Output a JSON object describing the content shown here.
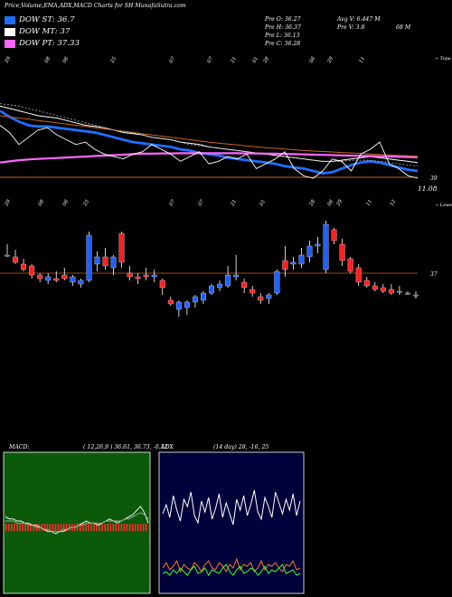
{
  "header": {
    "title": "Price,Volume,EMA,ADX,MACD Charts for SH MunafaSutra.com"
  },
  "legend": [
    {
      "label": "DOW ST: 36.7",
      "color": "#1f6fff"
    },
    {
      "label": "DOW MT: 37",
      "color": "#ffffff"
    },
    {
      "label": "DOW PT: 37.33",
      "color": "#ff66ff"
    }
  ],
  "info": {
    "prev_o": "Pre   O: 36.27",
    "prev_h": "Pre   H: 36.37",
    "prev_l": "Pre   L: 36.13",
    "prev_c": "Pre   C: 36.28",
    "avg_v": "Avg V: 6.447 M",
    "prev_v": "Pre   V: 3.8",
    "vol_unit": "68  M"
  },
  "colors": {
    "ema_fast": "#1f6fff",
    "ema_mid": "#ffffff",
    "ema_pt": "#ff66ff",
    "ema_long": "#c8641e",
    "bull": "#2060ff",
    "bear": "#ff2020",
    "macd_bg": "#0a5a0a",
    "adx_bg": "#00003a",
    "level_line": "#c8641e"
  },
  "panel_labels": {
    "ema_right": "« Topa",
    "candle_right": "« Lowes"
  },
  "chart_data": [
    {
      "type": "line",
      "panel": "ema",
      "ylim": [
        35.5,
        40.5
      ],
      "x_tick_labels": [
        "29",
        "08",
        "06",
        "25",
        "07",
        "07",
        "21",
        "01",
        "28",
        "06",
        "29",
        "11",
        "12",
        "06",
        "25",
        "02",
        "07"
      ],
      "price_level_label": "39",
      "last_value_label": "11.08",
      "series": [
        {
          "name": "DOW ST: 36.7",
          "color": "#1f6fff",
          "values": [
            38.6,
            38.35,
            38.15,
            38.0,
            37.95,
            37.95,
            37.9,
            37.85,
            37.8,
            37.75,
            37.7,
            37.6,
            37.5,
            37.4,
            37.3,
            37.25,
            37.2,
            37.15,
            37.1,
            37.0,
            36.95,
            36.85,
            36.8,
            36.75,
            36.65,
            36.6,
            36.55,
            36.5,
            36.45,
            36.4,
            36.3,
            36.25,
            36.2,
            36.1,
            36.0,
            36.05,
            36.2,
            36.35,
            36.45,
            36.5,
            36.45,
            36.35,
            36.25,
            36.15,
            36.1
          ]
        },
        {
          "name": "DOW MT: 37",
          "color": "#ffffff",
          "values": [
            38.8,
            38.7,
            38.6,
            38.5,
            38.4,
            38.35,
            38.3,
            38.2,
            38.1,
            38.0,
            37.95,
            37.9,
            37.8,
            37.7,
            37.65,
            37.6,
            37.5,
            37.45,
            37.4,
            37.3,
            37.25,
            37.2,
            37.1,
            37.05,
            37.0,
            36.95,
            36.9,
            36.85,
            36.8,
            36.75,
            36.7,
            36.65,
            36.6,
            36.55,
            36.5,
            36.5,
            36.55,
            36.6,
            36.65,
            36.7,
            36.65,
            36.6,
            36.55,
            36.5,
            36.45
          ]
        },
        {
          "name": "DOW PT: 37.33",
          "color": "#ff66ff",
          "values": [
            36.45,
            36.5,
            36.55,
            36.58,
            36.6,
            36.62,
            36.64,
            36.66,
            36.68,
            36.7,
            36.72,
            36.74,
            36.76,
            36.78,
            36.8,
            36.82,
            36.82,
            36.83,
            36.83,
            36.84,
            36.84,
            36.84,
            36.84,
            36.84,
            36.84,
            36.84,
            36.83,
            36.83,
            36.82,
            36.82,
            36.81,
            36.8,
            36.79,
            36.78,
            36.77,
            36.76,
            36.75,
            36.74,
            36.73,
            36.72,
            36.71,
            36.7,
            36.69,
            36.68,
            36.67
          ]
        },
        {
          "name": "",
          "color": "#c8641e",
          "values": [
            38.4,
            38.35,
            38.3,
            38.25,
            38.2,
            38.15,
            38.1,
            38.05,
            38.0,
            37.95,
            37.9,
            37.85,
            37.8,
            37.75,
            37.7,
            37.65,
            37.6,
            37.55,
            37.5,
            37.45,
            37.4,
            37.35,
            37.3,
            37.26,
            37.22,
            37.18,
            37.14,
            37.1,
            37.07,
            37.04,
            37.01,
            36.98,
            36.95,
            36.93,
            36.91,
            36.89,
            36.87,
            36.85,
            36.83,
            36.81,
            36.79,
            36.77,
            36.75,
            36.73,
            36.71
          ]
        },
        {
          "name": "",
          "color": "#bbbbbb",
          "values": [
            38.9,
            38.85,
            38.8,
            38.7,
            38.6,
            38.5,
            38.4,
            38.3,
            38.2,
            38.1,
            38.0,
            37.9,
            37.8,
            37.75,
            37.7,
            37.6,
            37.5,
            37.45,
            37.4,
            37.3,
            37.2,
            37.15,
            37.1,
            37.05,
            37.0,
            36.95,
            36.9,
            36.85,
            36.8,
            36.75,
            36.7,
            36.65,
            36.6,
            36.55,
            36.5,
            36.5,
            36.5,
            36.55,
            36.55,
            36.55,
            36.5,
            36.45,
            36.4,
            36.35,
            36.3
          ]
        },
        {
          "name": "",
          "color": "#ffffff",
          "values": [
            38.0,
            37.7,
            37.2,
            37.5,
            37.8,
            37.9,
            37.6,
            37.4,
            37.2,
            37.3,
            37.0,
            36.8,
            36.7,
            36.6,
            36.8,
            36.9,
            37.2,
            37.0,
            36.8,
            36.5,
            36.7,
            36.9,
            36.4,
            36.5,
            36.7,
            36.6,
            36.8,
            36.2,
            36.4,
            36.6,
            36.9,
            36.2,
            35.9,
            35.8,
            36.1,
            36.6,
            36.5,
            36.1,
            36.8,
            37.0,
            37.3,
            36.4,
            36.2,
            35.9,
            35.8
          ]
        }
      ]
    },
    {
      "type": "candlestick",
      "panel": "price",
      "ylim": [
        33.5,
        40.5
      ],
      "x_tick_labels": [
        "29",
        "08",
        "06",
        "25",
        "07",
        "07",
        "21",
        "01",
        "28",
        "06",
        "29",
        "11",
        "12",
        "06",
        "25",
        "02",
        "07"
      ],
      "level_line_value": 37.0,
      "level_label": "37",
      "candles": [
        {
          "o": 38.0,
          "h": 38.6,
          "l": 37.9,
          "c": 38.0
        },
        {
          "o": 37.9,
          "h": 38.3,
          "l": 37.5,
          "c": 37.6
        },
        {
          "o": 37.5,
          "h": 37.8,
          "l": 37.1,
          "c": 37.2
        },
        {
          "o": 37.4,
          "h": 37.5,
          "l": 36.7,
          "c": 36.9
        },
        {
          "o": 36.9,
          "h": 37.0,
          "l": 36.5,
          "c": 36.7
        },
        {
          "o": 36.6,
          "h": 37.0,
          "l": 36.4,
          "c": 36.8
        },
        {
          "o": 36.7,
          "h": 37.1,
          "l": 36.5,
          "c": 36.6
        },
        {
          "o": 36.9,
          "h": 37.3,
          "l": 36.6,
          "c": 36.7
        },
        {
          "o": 36.5,
          "h": 36.9,
          "l": 36.3,
          "c": 36.8
        },
        {
          "o": 36.4,
          "h": 36.7,
          "l": 36.2,
          "c": 36.6
        },
        {
          "o": 36.6,
          "h": 39.3,
          "l": 36.5,
          "c": 39.1
        },
        {
          "o": 37.5,
          "h": 38.2,
          "l": 37.1,
          "c": 37.9
        },
        {
          "o": 37.9,
          "h": 38.4,
          "l": 37.2,
          "c": 37.4
        },
        {
          "o": 37.3,
          "h": 38.0,
          "l": 36.9,
          "c": 37.9
        },
        {
          "o": 39.2,
          "h": 39.3,
          "l": 37.3,
          "c": 37.6
        },
        {
          "o": 37.0,
          "h": 37.4,
          "l": 36.6,
          "c": 36.8
        },
        {
          "o": 36.8,
          "h": 37.0,
          "l": 36.4,
          "c": 36.7
        },
        {
          "o": 36.9,
          "h": 37.3,
          "l": 36.6,
          "c": 36.8
        },
        {
          "o": 36.8,
          "h": 37.2,
          "l": 36.5,
          "c": 36.9
        },
        {
          "o": 36.6,
          "h": 36.7,
          "l": 35.8,
          "c": 36.2
        },
        {
          "o": 35.5,
          "h": 35.7,
          "l": 35.2,
          "c": 35.3
        },
        {
          "o": 35.0,
          "h": 35.5,
          "l": 34.6,
          "c": 35.4
        },
        {
          "o": 35.1,
          "h": 35.5,
          "l": 34.7,
          "c": 35.4
        },
        {
          "o": 35.4,
          "h": 35.8,
          "l": 35.1,
          "c": 35.7
        },
        {
          "o": 35.5,
          "h": 36.0,
          "l": 35.3,
          "c": 35.9
        },
        {
          "o": 35.9,
          "h": 36.4,
          "l": 35.8,
          "c": 36.3
        },
        {
          "o": 36.2,
          "h": 36.6,
          "l": 36.0,
          "c": 36.4
        },
        {
          "o": 36.3,
          "h": 37.4,
          "l": 36.2,
          "c": 36.9
        },
        {
          "o": 36.8,
          "h": 38.0,
          "l": 36.6,
          "c": 36.9
        },
        {
          "o": 36.5,
          "h": 36.7,
          "l": 35.9,
          "c": 36.2
        },
        {
          "o": 36.1,
          "h": 36.3,
          "l": 35.7,
          "c": 35.9
        },
        {
          "o": 35.7,
          "h": 35.9,
          "l": 35.3,
          "c": 35.5
        },
        {
          "o": 35.6,
          "h": 35.9,
          "l": 35.3,
          "c": 35.8
        },
        {
          "o": 35.9,
          "h": 37.2,
          "l": 35.8,
          "c": 37.1
        },
        {
          "o": 37.7,
          "h": 38.5,
          "l": 36.8,
          "c": 37.2
        },
        {
          "o": 37.5,
          "h": 37.9,
          "l": 37.2,
          "c": 37.6
        },
        {
          "o": 37.5,
          "h": 38.4,
          "l": 37.3,
          "c": 38.0
        },
        {
          "o": 37.9,
          "h": 38.8,
          "l": 37.6,
          "c": 38.5
        },
        {
          "o": 38.5,
          "h": 39.0,
          "l": 38.1,
          "c": 38.6
        },
        {
          "o": 37.2,
          "h": 39.9,
          "l": 37.0,
          "c": 39.7
        },
        {
          "o": 39.4,
          "h": 39.5,
          "l": 38.6,
          "c": 38.8
        },
        {
          "o": 38.6,
          "h": 38.9,
          "l": 37.4,
          "c": 37.7
        },
        {
          "o": 37.8,
          "h": 37.9,
          "l": 37.0,
          "c": 37.1
        },
        {
          "o": 37.3,
          "h": 37.5,
          "l": 36.3,
          "c": 36.5
        },
        {
          "o": 36.6,
          "h": 36.8,
          "l": 36.2,
          "c": 36.3
        },
        {
          "o": 36.3,
          "h": 36.5,
          "l": 36.0,
          "c": 36.1
        },
        {
          "o": 36.2,
          "h": 36.4,
          "l": 35.9,
          "c": 36.0
        },
        {
          "o": 36.1,
          "h": 36.4,
          "l": 35.8,
          "c": 35.9
        },
        {
          "o": 36.0,
          "h": 36.3,
          "l": 35.8,
          "c": 36.0
        },
        {
          "o": 35.9,
          "h": 36.0,
          "l": 35.8,
          "c": 35.9
        },
        {
          "o": 35.8,
          "h": 36.0,
          "l": 35.6,
          "c": 35.8
        }
      ]
    },
    {
      "type": "line",
      "panel": "macd",
      "title": "MACD:",
      "params_label": "( 12,26,9 ) 36.61,  36.73,  -0.12",
      "series": [
        {
          "name": "",
          "color": "#ffffff",
          "values": [
            0.05,
            0.04,
            0.04,
            0.03,
            0.03,
            0.02,
            0.02,
            0.01,
            0.01,
            0.0,
            -0.01,
            -0.02,
            -0.02,
            -0.03,
            -0.02,
            -0.02,
            -0.01,
            0.0,
            0.0,
            0.01,
            0.02,
            0.03,
            0.02,
            0.02,
            0.01,
            0.02,
            0.03,
            0.04,
            0.03,
            0.02,
            0.03,
            0.04,
            0.05,
            0.06,
            0.08,
            0.1,
            0.07,
            0.02
          ]
        },
        {
          "name": "",
          "color": "#aaaaaa",
          "values": [
            0.03,
            0.03,
            0.03,
            0.02,
            0.02,
            0.02,
            0.01,
            0.01,
            0.0,
            0.0,
            -0.01,
            -0.01,
            -0.02,
            -0.02,
            -0.02,
            -0.01,
            -0.01,
            0.0,
            0.0,
            0.01,
            0.01,
            0.02,
            0.02,
            0.02,
            0.02,
            0.02,
            0.03,
            0.03,
            0.03,
            0.03,
            0.03,
            0.04,
            0.04,
            0.05,
            0.06,
            0.07,
            0.06,
            0.04
          ]
        }
      ],
      "histogram_count": 52
    },
    {
      "type": "line",
      "panel": "adx",
      "title": "ADX",
      "params_label": "(14  day) 28,  -16,  25",
      "series": [
        {
          "name": "",
          "color": "#ffffff",
          "values": [
            40,
            45,
            38,
            50,
            42,
            36,
            48,
            44,
            52,
            39,
            35,
            47,
            41,
            49,
            37,
            43,
            51,
            38,
            46,
            40,
            34,
            48,
            42,
            50,
            39,
            45,
            53,
            41,
            37,
            49,
            44,
            38,
            52,
            46,
            40,
            48,
            42,
            51,
            39,
            47
          ]
        },
        {
          "name": "",
          "color": "#ff7a1a",
          "values": [
            10,
            13,
            9,
            11,
            14,
            8,
            12,
            10,
            9,
            13,
            11,
            8,
            12,
            14,
            10,
            9,
            13,
            11,
            8,
            12,
            10,
            15,
            9,
            12,
            11,
            13,
            8,
            10,
            14,
            9,
            12,
            11,
            13,
            10,
            8,
            12,
            11,
            14,
            9,
            10
          ]
        },
        {
          "name": "",
          "color": "#30ff30",
          "values": [
            7,
            8,
            6,
            9,
            7,
            10,
            8,
            6,
            9,
            11,
            7,
            8,
            10,
            6,
            9,
            8,
            7,
            10,
            12,
            8,
            6,
            9,
            11,
            7,
            8,
            10,
            9,
            6,
            8,
            11,
            7,
            9,
            8,
            10,
            12,
            7,
            8,
            9,
            6,
            7
          ]
        }
      ]
    }
  ]
}
